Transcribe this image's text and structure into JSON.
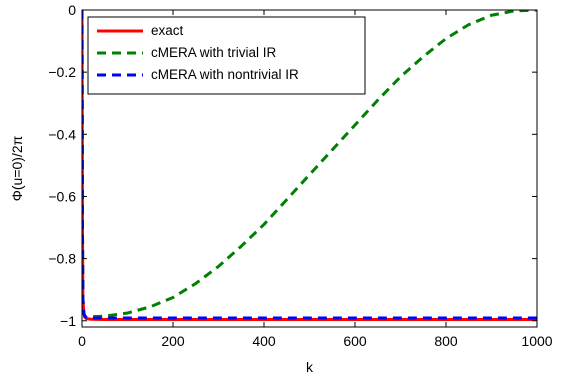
{
  "chart_data": {
    "type": "line",
    "title": "",
    "xlabel": "k",
    "ylabel": "Φ(u=0)/2π",
    "xlim": [
      0,
      1000
    ],
    "ylim": [
      -1.02,
      0
    ],
    "xticks": [
      0,
      200,
      400,
      600,
      800,
      1000
    ],
    "xtick_labels": [
      "0",
      "200",
      "400",
      "600",
      "800",
      "1000"
    ],
    "yticks": [
      0,
      -0.2,
      -0.4,
      -0.6,
      -0.8,
      -1
    ],
    "ytick_labels": [
      "0",
      "−0.2",
      "−0.4",
      "−0.6",
      "−0.8",
      "−1"
    ],
    "grid": false,
    "legend_position": "top-left",
    "series": [
      {
        "name": "exact",
        "color": "#ff0000",
        "style": "solid",
        "x": [
          0,
          1,
          2,
          4,
          6,
          10,
          20,
          50,
          100,
          200,
          400,
          600,
          800,
          1000
        ],
        "y": [
          0,
          -0.7,
          -0.93,
          -0.975,
          -0.988,
          -0.993,
          -0.995,
          -0.996,
          -0.996,
          -0.996,
          -0.996,
          -0.996,
          -0.996,
          -0.996
        ]
      },
      {
        "name": "cMERA with trivial IR",
        "color": "#008000",
        "style": "dashed",
        "x": [
          0,
          1,
          2,
          4,
          6,
          10,
          20,
          50,
          100,
          150,
          200,
          250,
          300,
          350,
          400,
          450,
          500,
          550,
          600,
          650,
          700,
          750,
          800,
          850,
          900,
          950,
          1000
        ],
        "y": [
          0,
          -0.7,
          -0.93,
          -0.975,
          -0.985,
          -0.988,
          -0.987,
          -0.985,
          -0.975,
          -0.955,
          -0.925,
          -0.88,
          -0.825,
          -0.76,
          -0.69,
          -0.61,
          -0.53,
          -0.45,
          -0.37,
          -0.29,
          -0.215,
          -0.15,
          -0.092,
          -0.047,
          -0.017,
          -0.003,
          0
        ]
      },
      {
        "name": "cMERA with nontrivial IR",
        "color": "#0000ff",
        "style": "dashed",
        "x": [
          0,
          1,
          2,
          4,
          6,
          10,
          20,
          50,
          100,
          200,
          400,
          600,
          800,
          1000
        ],
        "y": [
          0,
          -0.7,
          -0.93,
          -0.975,
          -0.985,
          -0.99,
          -0.991,
          -0.991,
          -0.991,
          -0.991,
          -0.991,
          -0.991,
          -0.991,
          -0.991
        ]
      }
    ]
  }
}
